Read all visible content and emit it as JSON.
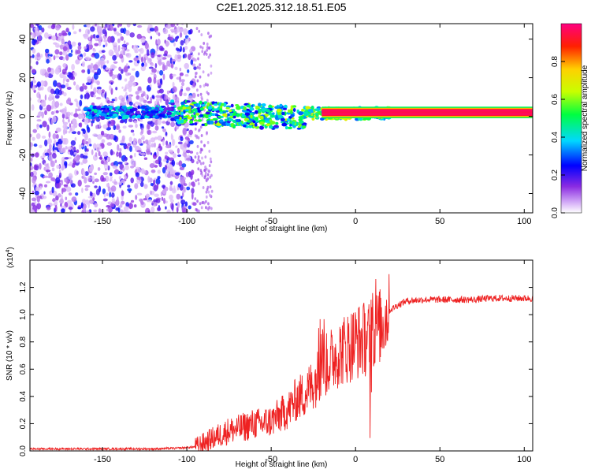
{
  "title": "C2E1.2025.312.18.51.E05",
  "chart_data": [
    {
      "type": "heatmap",
      "name": "spectrogram",
      "xlabel": "Height of straight line (km)",
      "ylabel": "Frequency (Hz)",
      "xlim": [
        -193,
        105
      ],
      "ylim": [
        -50,
        48
      ],
      "xticks": [
        -150,
        -100,
        -50,
        0,
        50,
        100
      ],
      "yticks": [
        -40,
        -20,
        0,
        20,
        40
      ],
      "xticklabels": [
        "-150",
        "-100",
        "-50",
        "0",
        "50",
        "100"
      ],
      "yticklabels": [
        "-40",
        "-20",
        "0",
        "20",
        "40"
      ],
      "colorbar": {
        "label": "Normalized spectral amplitude",
        "range": [
          0,
          1
        ],
        "ticks": [
          0.0,
          0.2,
          0.4,
          0.6,
          0.8
        ],
        "ticklabels": [
          "0.0",
          "0.2",
          "0.4",
          "0.6",
          "0.8"
        ],
        "colormap": [
          "#ffffff",
          "#d8b4f8",
          "#8a2be2",
          "#0000ff",
          "#00d8ff",
          "#00ff40",
          "#c8ff00",
          "#ffd000",
          "#ff2000",
          "#ff0080"
        ]
      },
      "features": {
        "noise_region_km": [
          -193,
          -95
        ],
        "steady_line_start_km": -20,
        "steady_line_freq_hz": 2
      }
    },
    {
      "type": "line",
      "name": "snr",
      "xlabel": "Height of straight line (km)",
      "ylabel": "SNR (10 * v/v)",
      "scale_label": "(x10",
      "scale_exp": "4",
      "scale_close": ")",
      "xlim": [
        -193,
        105
      ],
      "ylim": [
        0,
        1.4
      ],
      "xticks": [
        -150,
        -100,
        -50,
        0,
        50,
        100
      ],
      "yticks": [
        0.0,
        0.2,
        0.4,
        0.6,
        0.8,
        1.0,
        1.2
      ],
      "xticklabels": [
        "-150",
        "-100",
        "-50",
        "0",
        "50",
        "100"
      ],
      "yticklabels": [
        "0.0",
        "0.2",
        "0.4",
        "0.6",
        "0.8",
        "1.0",
        "1.2"
      ],
      "series": [
        {
          "name": "SNR",
          "color": "#ee2222",
          "x": [
            -193,
            -180,
            -160,
            -140,
            -120,
            -105,
            -95,
            -90,
            -85,
            -80,
            -75,
            -70,
            -65,
            -60,
            -55,
            -50,
            -45,
            -40,
            -35,
            -30,
            -25,
            -22,
            -20,
            -18,
            -15,
            -12,
            -10,
            -5,
            0,
            5,
            8,
            10,
            12,
            15,
            18,
            20,
            25,
            30,
            40,
            50,
            60,
            70,
            80,
            90,
            95,
            100,
            105
          ],
          "y": [
            0.015,
            0.015,
            0.015,
            0.015,
            0.015,
            0.02,
            0.03,
            0.06,
            0.09,
            0.12,
            0.15,
            0.16,
            0.18,
            0.2,
            0.2,
            0.22,
            0.26,
            0.3,
            0.38,
            0.42,
            0.5,
            0.55,
            0.6,
            0.62,
            0.66,
            0.7,
            0.72,
            0.76,
            0.8,
            0.82,
            0.84,
            0.88,
            0.9,
            0.92,
            0.98,
            1.03,
            1.07,
            1.1,
            1.11,
            1.11,
            1.11,
            1.11,
            1.12,
            1.12,
            1.12,
            1.12,
            1.12
          ]
        }
      ]
    }
  ]
}
